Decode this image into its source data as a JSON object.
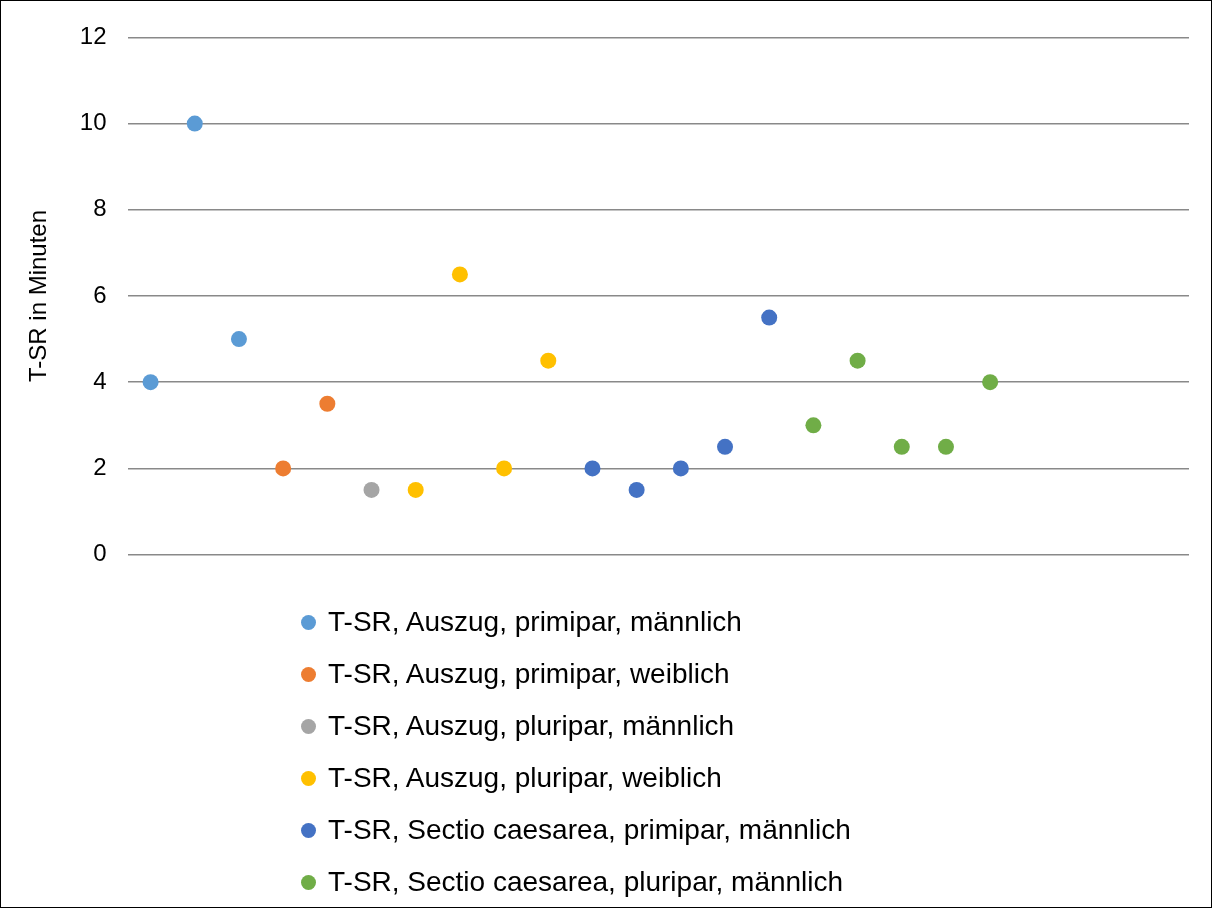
{
  "chart_data": {
    "type": "scatter",
    "ylabel": "T-SR in Minuten",
    "categories": [
      null,
      null,
      null,
      null,
      null,
      null,
      null,
      null,
      null,
      null,
      null,
      null,
      null,
      null,
      null,
      null,
      null,
      null,
      null,
      null,
      null,
      null,
      null,
      null
    ],
    "ylim": [
      0,
      12
    ],
    "yticks": [
      0,
      2,
      4,
      6,
      8,
      10,
      12
    ],
    "tick_labels": "y",
    "grid": "y",
    "legend": "bottom",
    "marker": "circle",
    "series": [
      {
        "name": "T-SR, Auszug, primipar, männlich",
        "color": "#5b9bd5",
        "values": [
          4,
          10,
          5,
          null,
          null,
          null,
          null,
          null,
          null,
          null,
          null,
          null,
          null,
          null,
          null,
          null,
          null,
          null,
          null,
          null,
          null,
          null,
          null,
          null
        ]
      },
      {
        "name": "T-SR, Auszug, primipar, weiblich",
        "color": "#ed7d31",
        "values": [
          null,
          null,
          null,
          2,
          3.5,
          null,
          null,
          null,
          null,
          null,
          null,
          null,
          null,
          null,
          null,
          null,
          null,
          null,
          null,
          null,
          null,
          null,
          null,
          null
        ]
      },
      {
        "name": "T-SR, Auszug, pluripar, männlich",
        "color": "#a5a5a5",
        "values": [
          null,
          null,
          null,
          null,
          null,
          1.5,
          null,
          null,
          null,
          null,
          null,
          null,
          null,
          null,
          null,
          null,
          null,
          null,
          null,
          null,
          null,
          null,
          null,
          null
        ]
      },
      {
        "name": "T-SR, Auszug, pluripar, weiblich",
        "color": "#ffc000",
        "values": [
          null,
          null,
          null,
          null,
          null,
          null,
          1.5,
          6.5,
          2,
          4.5,
          null,
          null,
          null,
          null,
          null,
          null,
          null,
          null,
          null,
          null,
          null,
          null,
          null,
          null
        ]
      },
      {
        "name": "T-SR, Sectio caesarea, primipar, männlich",
        "color": "#4472c4",
        "values": [
          null,
          null,
          null,
          null,
          null,
          null,
          null,
          null,
          null,
          null,
          2,
          1.5,
          2,
          2.5,
          5.5,
          null,
          null,
          null,
          null,
          null,
          null,
          null,
          null,
          null
        ]
      },
      {
        "name": "T-SR, Sectio caesarea, pluripar, männlich",
        "color": "#70ad47",
        "values": [
          null,
          null,
          null,
          null,
          null,
          null,
          null,
          null,
          null,
          null,
          null,
          null,
          null,
          null,
          null,
          3,
          4.5,
          2.5,
          2.5,
          4,
          null,
          null,
          null,
          null
        ]
      }
    ]
  }
}
